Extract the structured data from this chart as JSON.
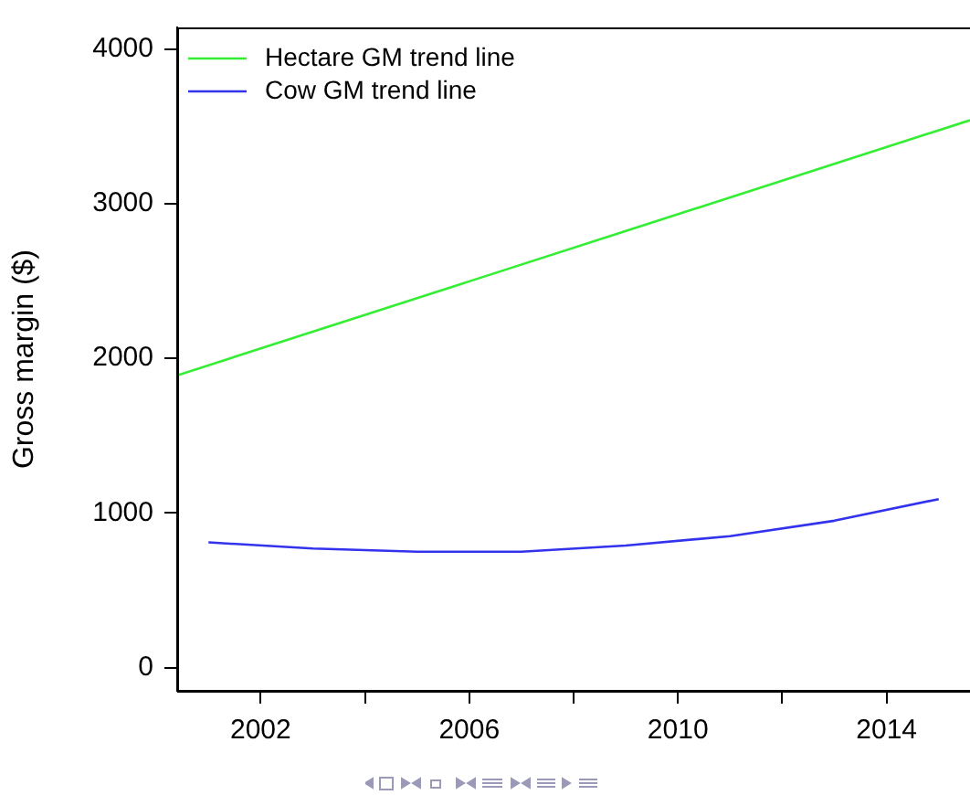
{
  "chart_data": {
    "type": "line",
    "ylabel": "Gross margin ($)",
    "series": [
      {
        "name": "Hectare GM trend line",
        "color": "#33ee33",
        "x": [
          2000.4,
          2015.6
        ],
        "values": [
          1890,
          3540
        ]
      },
      {
        "name": "Cow GM trend line",
        "color": "#3333ee",
        "x": [
          2001,
          2003,
          2005,
          2007,
          2009,
          2011,
          2013,
          2015
        ],
        "values": [
          810,
          770,
          750,
          750,
          790,
          850,
          950,
          1090
        ]
      }
    ],
    "xlim": [
      2000.4,
      2015.6
    ],
    "xticks": [
      2002,
      {
        "value": 2004,
        "label": null
      },
      2006,
      {
        "value": 2008,
        "label": null
      },
      2010,
      {
        "value": 2012,
        "label": null
      },
      2014
    ],
    "ylim": [
      -150,
      4140
    ],
    "yticks": [
      0,
      1000,
      2000,
      3000,
      4000
    ],
    "grid": false,
    "legend": "top left",
    "marker": "none",
    "line_style": "solid"
  }
}
